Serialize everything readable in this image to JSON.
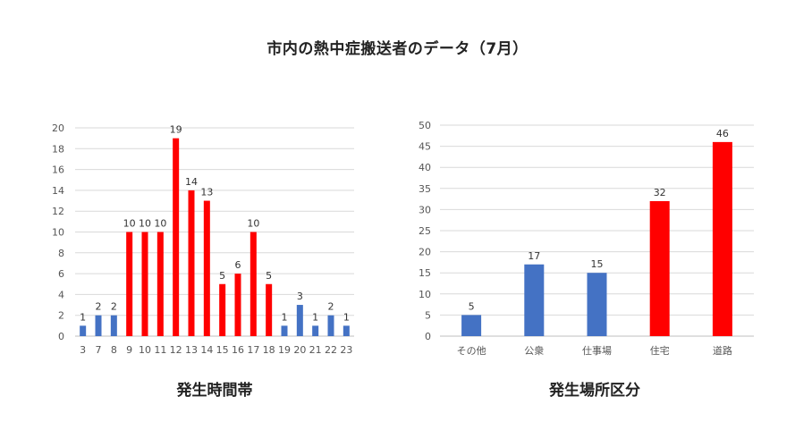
{
  "page": {
    "title": "市内の熱中症搬送者のデータ（7月）"
  },
  "colors": {
    "blue": "#4472C4",
    "red": "#FF0000",
    "grid": "#d9d9d9"
  },
  "chart_data": [
    {
      "type": "bar",
      "title": "発生時間帯",
      "xlabel": "",
      "ylabel": "",
      "categories": [
        "3",
        "7",
        "8",
        "9",
        "10",
        "11",
        "12",
        "13",
        "14",
        "15",
        "16",
        "17",
        "18",
        "19",
        "20",
        "21",
        "22",
        "23"
      ],
      "values": [
        1,
        2,
        2,
        10,
        10,
        10,
        19,
        14,
        13,
        5,
        6,
        10,
        5,
        1,
        3,
        1,
        2,
        1
      ],
      "bar_colors": [
        "blue",
        "blue",
        "blue",
        "red",
        "red",
        "red",
        "red",
        "red",
        "red",
        "red",
        "red",
        "red",
        "red",
        "blue",
        "blue",
        "blue",
        "blue",
        "blue"
      ],
      "yticks": [
        0,
        2,
        4,
        6,
        8,
        10,
        12,
        14,
        16,
        18,
        20
      ],
      "ylim": [
        0,
        20
      ],
      "grid": true,
      "data_labels": true
    },
    {
      "type": "bar",
      "title": "発生場所区分",
      "xlabel": "",
      "ylabel": "",
      "categories": [
        "その他",
        "公衆",
        "仕事場",
        "住宅",
        "道路"
      ],
      "values": [
        5,
        17,
        15,
        32,
        46
      ],
      "bar_colors": [
        "blue",
        "blue",
        "blue",
        "red",
        "red"
      ],
      "yticks": [
        0,
        5,
        10,
        15,
        20,
        25,
        30,
        35,
        40,
        45,
        50
      ],
      "ylim": [
        0,
        50
      ],
      "grid": true,
      "data_labels": true
    }
  ]
}
